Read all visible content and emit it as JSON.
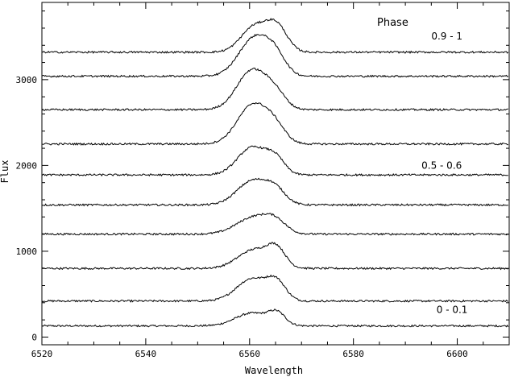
{
  "chart_data": {
    "type": "line",
    "title": "",
    "xlabel": "Wavelength",
    "ylabel": "Flux",
    "xlim": [
      6520,
      6610
    ],
    "ylim": [
      -90,
      3900
    ],
    "x_ticks": [
      6520,
      6540,
      6560,
      6580,
      6600
    ],
    "y_ticks": [
      0,
      1000,
      2000,
      3000
    ],
    "grid": false,
    "legend_title": "Phase",
    "phase_labels": [
      {
        "text": "0.9 - 1",
        "x": 6598,
        "y": 3470
      },
      {
        "text": "0.5 - 0.6",
        "x": 6597,
        "y": 1960
      },
      {
        "text": "0 - 0.1",
        "x": 6599,
        "y": 280
      }
    ],
    "series": [
      {
        "baseline": 130,
        "peaks": [
          {
            "center": 6560.5,
            "amp": 150,
            "width": 3.2
          },
          {
            "center": 6565.3,
            "amp": 130,
            "width": 1.6
          }
        ]
      },
      {
        "baseline": 420,
        "peaks": [
          {
            "center": 6560.5,
            "amp": 260,
            "width": 3.0
          },
          {
            "center": 6565.2,
            "amp": 200,
            "width": 1.8
          }
        ]
      },
      {
        "baseline": 800,
        "peaks": [
          {
            "center": 6561,
            "amp": 220,
            "width": 3.2
          },
          {
            "center": 6565.2,
            "amp": 190,
            "width": 1.7
          }
        ]
      },
      {
        "baseline": 1200,
        "peaks": [
          {
            "center": 6561,
            "amp": 200,
            "width": 3.4
          },
          {
            "center": 6565,
            "amp": 110,
            "width": 2.0
          }
        ]
      },
      {
        "baseline": 1540,
        "peaks": [
          {
            "center": 6560.6,
            "amp": 280,
            "width": 3.0
          },
          {
            "center": 6565,
            "amp": 150,
            "width": 2.0
          }
        ]
      },
      {
        "baseline": 1890,
        "peaks": [
          {
            "center": 6560.5,
            "amp": 320,
            "width": 2.8
          },
          {
            "center": 6565,
            "amp": 170,
            "width": 1.8
          }
        ]
      },
      {
        "baseline": 2250,
        "peaks": [
          {
            "center": 6560.7,
            "amp": 460,
            "width": 3.0
          },
          {
            "center": 6565,
            "amp": 150,
            "width": 2.0
          }
        ]
      },
      {
        "baseline": 2650,
        "peaks": [
          {
            "center": 6560.5,
            "amp": 460,
            "width": 2.9
          },
          {
            "center": 6565,
            "amp": 160,
            "width": 2.0
          }
        ]
      },
      {
        "baseline": 3040,
        "peaks": [
          {
            "center": 6561,
            "amp": 450,
            "width": 3.0
          },
          {
            "center": 6565,
            "amp": 180,
            "width": 2.0
          }
        ]
      },
      {
        "baseline": 3320,
        "peaks": [
          {
            "center": 6561,
            "amp": 300,
            "width": 2.6
          },
          {
            "center": 6565.3,
            "amp": 280,
            "width": 2.0
          }
        ]
      }
    ]
  }
}
